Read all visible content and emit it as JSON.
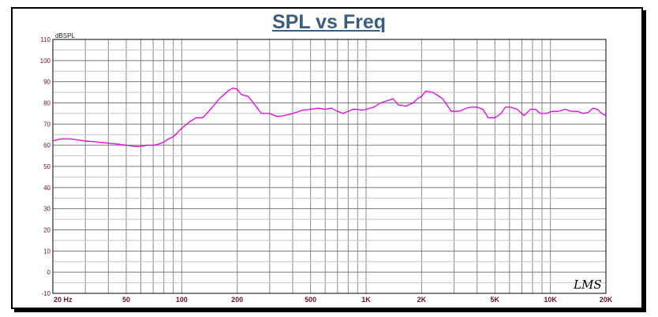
{
  "chart_data": {
    "type": "line",
    "title": "SPL vs Freq",
    "ylabel": "dBSPL",
    "xlabel": "",
    "xscale": "log",
    "xlim": [
      20,
      20000
    ],
    "ylim": [
      -10,
      110
    ],
    "grid": true,
    "legend": "none",
    "brand_mark": "LMS",
    "yticks": [
      110,
      100,
      90,
      80,
      70,
      60,
      50,
      40,
      30,
      20,
      10,
      0,
      -10
    ],
    "xticks": [
      {
        "value": 20,
        "label": "20 Hz"
      },
      {
        "value": 50,
        "label": "50"
      },
      {
        "value": 100,
        "label": "100"
      },
      {
        "value": 200,
        "label": "200"
      },
      {
        "value": 500,
        "label": "500"
      },
      {
        "value": 1000,
        "label": "1K"
      },
      {
        "value": 2000,
        "label": "2K"
      },
      {
        "value": 5000,
        "label": "5K"
      },
      {
        "value": 10000,
        "label": "10K"
      },
      {
        "value": 20000,
        "label": "20K"
      }
    ],
    "series": [
      {
        "color": "#e600e6",
        "x": [
          20,
          22,
          25,
          30,
          35,
          40,
          45,
          50,
          55,
          60,
          65,
          70,
          75,
          80,
          85,
          90,
          95,
          100,
          110,
          120,
          130,
          140,
          150,
          160,
          170,
          180,
          190,
          200,
          210,
          230,
          250,
          270,
          300,
          330,
          360,
          400,
          450,
          500,
          550,
          600,
          650,
          700,
          750,
          800,
          850,
          900,
          950,
          1000,
          1100,
          1200,
          1300,
          1400,
          1500,
          1650,
          1800,
          1900,
          2000,
          2100,
          2300,
          2600,
          2900,
          3200,
          3500,
          3700,
          4000,
          4300,
          4600,
          5000,
          5400,
          5700,
          6100,
          6600,
          7200,
          7800,
          8300,
          8800,
          9500,
          10200,
          11000,
          12000,
          13000,
          14000,
          15000,
          16000,
          17000,
          18000,
          19000,
          20000
        ],
        "y": [
          62,
          63,
          63,
          62,
          61.5,
          61,
          60.5,
          60,
          59.5,
          59.5,
          60,
          60,
          60.5,
          61.5,
          63,
          64,
          66,
          68,
          71,
          73,
          73,
          76,
          79,
          82,
          84,
          86,
          87,
          86.5,
          84,
          83,
          79,
          75,
          75,
          73.5,
          74,
          75,
          76.5,
          77,
          77.5,
          77,
          77.5,
          76,
          75,
          76,
          77,
          77,
          76.5,
          77,
          78,
          80,
          81,
          82,
          79,
          78.5,
          80,
          82,
          83,
          85.5,
          85,
          82,
          76,
          76,
          77.5,
          78,
          78,
          77,
          73,
          73,
          75,
          78,
          78,
          77,
          74,
          77,
          77,
          75,
          75,
          76,
          76,
          77,
          76,
          76,
          75,
          75.5,
          77.5,
          77,
          75,
          74
        ]
      }
    ]
  }
}
